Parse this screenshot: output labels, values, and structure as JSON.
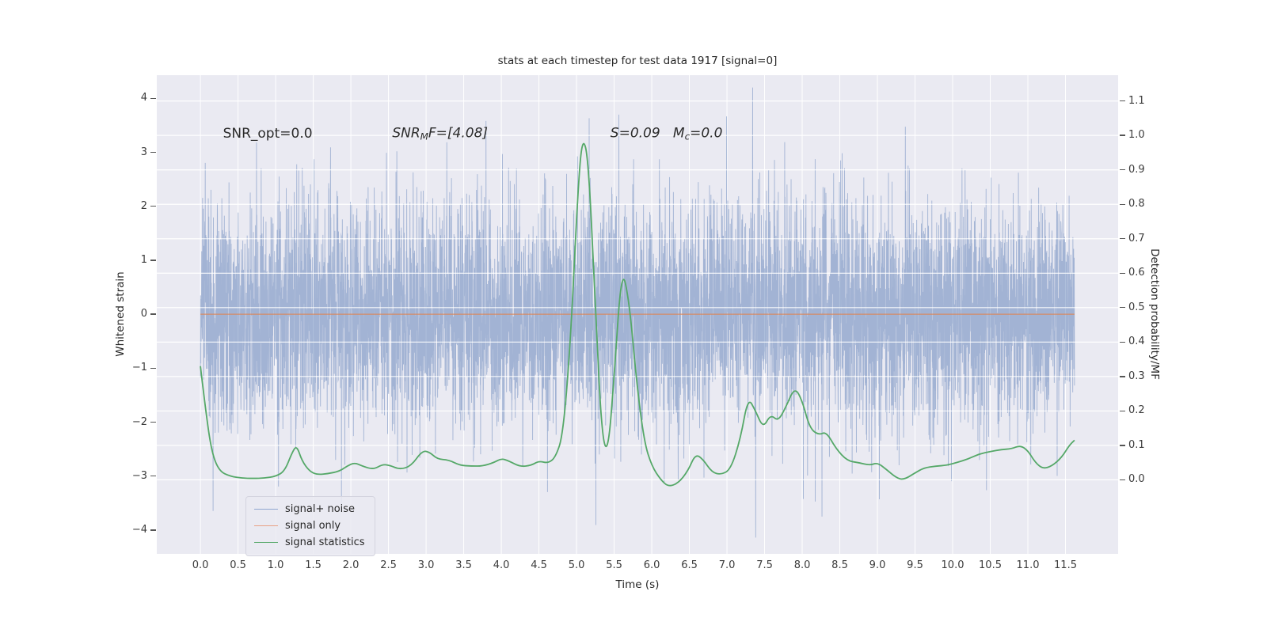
{
  "chart_data": {
    "type": "line",
    "title": "stats at each timestep for test data 1917 [signal=0]",
    "xlabel": "Time (s)",
    "ylabel_left": "Whitened strain",
    "ylabel_right": "Detection probability/MF",
    "xlim": [
      -0.58,
      12.2
    ],
    "ylim_left": [
      -4.44,
      4.43
    ],
    "ylim_right": [
      -0.215,
      1.175
    ],
    "xticks": [
      0.0,
      0.5,
      1.0,
      1.5,
      2.0,
      2.5,
      3.0,
      3.5,
      4.0,
      4.5,
      5.0,
      5.5,
      6.0,
      6.5,
      7.0,
      7.5,
      8.0,
      8.5,
      9.0,
      9.5,
      10.0,
      10.5,
      11.0,
      11.5
    ],
    "yticks_left": [
      4,
      3,
      2,
      1,
      0,
      -1,
      -2,
      -3,
      -4
    ],
    "yticks_right": [
      1.1,
      1.0,
      0.9,
      0.8,
      0.7,
      0.6,
      0.5,
      0.4,
      0.3,
      0.2,
      0.1,
      0.0
    ],
    "style": {
      "plot_background": "#eaeaf2",
      "grid_color": "#ffffff",
      "figure_background": "#ffffff",
      "tick_color": "#555555"
    },
    "annotations": [
      {
        "x": 0.3,
        "y": 3.35,
        "style": "normal",
        "parts": [
          {
            "t": "SNR_opt=0.0"
          }
        ]
      },
      {
        "x": 2.55,
        "y": 3.35,
        "style": "italic",
        "parts": [
          {
            "t": "SNR"
          },
          {
            "t": "M",
            "sub": true
          },
          {
            "t": "F=[4.08]"
          }
        ]
      },
      {
        "x": 5.45,
        "y": 3.35,
        "style": "italic",
        "parts": [
          {
            "t": "S=0.09   "
          },
          {
            "t": "M"
          },
          {
            "t": "c",
            "sub": true
          },
          {
            "t": "=0.0"
          }
        ]
      }
    ],
    "legend": {
      "position": "lower left"
    },
    "series": [
      {
        "name": "signal+ noise",
        "type": "noise",
        "axis": "left",
        "color": "#4c72b0",
        "alpha": 0.45,
        "legend_color": "#8fa6cf",
        "sigma": 1.05,
        "samples": 6000,
        "seed": 20240917,
        "x_range": [
          0,
          11.62
        ],
        "observed_extent": [
          -4.1,
          4.1
        ],
        "dense_band": [
          -1.65,
          1.65
        ]
      },
      {
        "name": "signal only",
        "type": "flat",
        "axis": "left",
        "value": 0.0,
        "color": "#dd8452",
        "alpha": 0.85,
        "legend_color": "#e8a184",
        "x_range": [
          0,
          11.62
        ]
      },
      {
        "name": "signal statistics",
        "type": "line",
        "axis": "right",
        "color": "#55a868",
        "legend_color": "#55a868",
        "points": [
          [
            0.0,
            0.33
          ],
          [
            0.07,
            0.2
          ],
          [
            0.15,
            0.08
          ],
          [
            0.25,
            0.025
          ],
          [
            0.4,
            0.01
          ],
          [
            0.55,
            0.005
          ],
          [
            0.7,
            0.004
          ],
          [
            0.85,
            0.005
          ],
          [
            1.0,
            0.01
          ],
          [
            1.12,
            0.025
          ],
          [
            1.22,
            0.08
          ],
          [
            1.28,
            0.1
          ],
          [
            1.35,
            0.055
          ],
          [
            1.45,
            0.025
          ],
          [
            1.55,
            0.015
          ],
          [
            1.7,
            0.018
          ],
          [
            1.85,
            0.025
          ],
          [
            1.95,
            0.04
          ],
          [
            2.05,
            0.05
          ],
          [
            2.15,
            0.04
          ],
          [
            2.3,
            0.03
          ],
          [
            2.42,
            0.045
          ],
          [
            2.52,
            0.042
          ],
          [
            2.65,
            0.03
          ],
          [
            2.8,
            0.04
          ],
          [
            2.95,
            0.085
          ],
          [
            3.05,
            0.08
          ],
          [
            3.15,
            0.06
          ],
          [
            3.3,
            0.058
          ],
          [
            3.45,
            0.042
          ],
          [
            3.6,
            0.04
          ],
          [
            3.75,
            0.04
          ],
          [
            3.9,
            0.05
          ],
          [
            4.0,
            0.062
          ],
          [
            4.1,
            0.055
          ],
          [
            4.25,
            0.038
          ],
          [
            4.4,
            0.042
          ],
          [
            4.5,
            0.055
          ],
          [
            4.62,
            0.048
          ],
          [
            4.72,
            0.065
          ],
          [
            4.82,
            0.13
          ],
          [
            4.92,
            0.4
          ],
          [
            5.02,
            0.85
          ],
          [
            5.08,
            1.0
          ],
          [
            5.16,
            0.93
          ],
          [
            5.26,
            0.45
          ],
          [
            5.34,
            0.12
          ],
          [
            5.42,
            0.08
          ],
          [
            5.5,
            0.3
          ],
          [
            5.6,
            0.62
          ],
          [
            5.7,
            0.52
          ],
          [
            5.8,
            0.28
          ],
          [
            5.9,
            0.11
          ],
          [
            6.0,
            0.04
          ],
          [
            6.12,
            0.0
          ],
          [
            6.22,
            -0.02
          ],
          [
            6.35,
            -0.01
          ],
          [
            6.48,
            0.025
          ],
          [
            6.58,
            0.075
          ],
          [
            6.68,
            0.06
          ],
          [
            6.8,
            0.022
          ],
          [
            6.92,
            0.015
          ],
          [
            7.05,
            0.03
          ],
          [
            7.18,
            0.12
          ],
          [
            7.28,
            0.24
          ],
          [
            7.38,
            0.2
          ],
          [
            7.48,
            0.15
          ],
          [
            7.58,
            0.19
          ],
          [
            7.68,
            0.17
          ],
          [
            7.78,
            0.21
          ],
          [
            7.9,
            0.27
          ],
          [
            8.0,
            0.23
          ],
          [
            8.1,
            0.15
          ],
          [
            8.22,
            0.13
          ],
          [
            8.32,
            0.14
          ],
          [
            8.45,
            0.09
          ],
          [
            8.6,
            0.055
          ],
          [
            8.75,
            0.05
          ],
          [
            8.9,
            0.042
          ],
          [
            9.0,
            0.05
          ],
          [
            9.12,
            0.03
          ],
          [
            9.25,
            0.006
          ],
          [
            9.35,
            0.0
          ],
          [
            9.5,
            0.02
          ],
          [
            9.62,
            0.035
          ],
          [
            9.78,
            0.04
          ],
          [
            9.92,
            0.042
          ],
          [
            10.05,
            0.05
          ],
          [
            10.2,
            0.06
          ],
          [
            10.35,
            0.075
          ],
          [
            10.5,
            0.082
          ],
          [
            10.65,
            0.088
          ],
          [
            10.78,
            0.09
          ],
          [
            10.9,
            0.1
          ],
          [
            11.0,
            0.085
          ],
          [
            11.1,
            0.05
          ],
          [
            11.2,
            0.032
          ],
          [
            11.32,
            0.04
          ],
          [
            11.45,
            0.065
          ],
          [
            11.55,
            0.1
          ],
          [
            11.62,
            0.115
          ]
        ]
      }
    ]
  }
}
